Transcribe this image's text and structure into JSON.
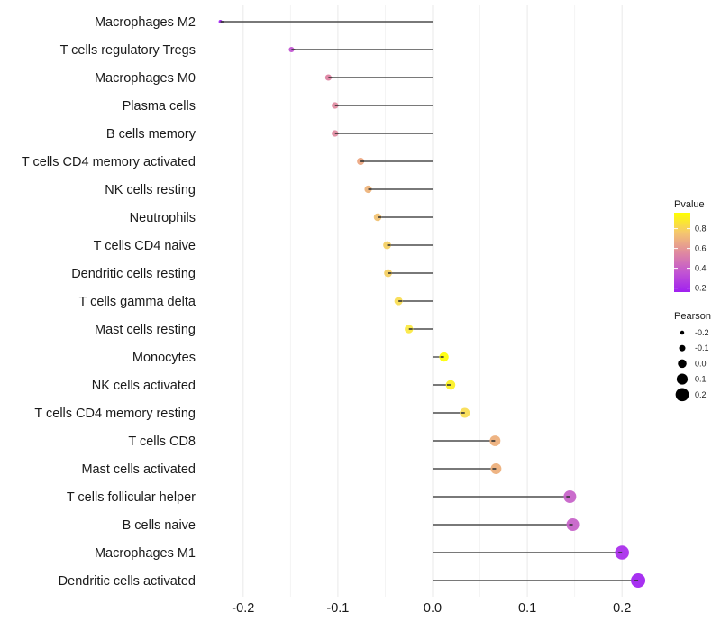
{
  "chart_data": {
    "type": "lollipop",
    "title": "",
    "xlabel": "",
    "ylabel": "",
    "xlim": [
      -0.235,
      0.23
    ],
    "x_ticks": [
      -0.2,
      -0.1,
      0.0,
      0.1,
      0.2
    ],
    "x_tick_labels": [
      "-0.2",
      "-0.1",
      "0.0",
      "0.1",
      "0.2"
    ],
    "x_minor_ticks": [
      -0.15,
      -0.05,
      0.05,
      0.15
    ],
    "grid": true,
    "categories": [
      "Macrophages M2",
      "T cells regulatory  Tregs",
      "Macrophages M0",
      "Plasma cells",
      "B cells memory",
      "T cells CD4 memory activated",
      "NK cells resting",
      "Neutrophils",
      "T cells CD4 naive",
      "Dendritic cells resting",
      "T cells gamma delta",
      "Mast cells resting",
      "Monocytes",
      "NK cells activated",
      "T cells CD4 memory resting",
      "T cells CD8",
      "Mast cells activated",
      "T cells follicular helper",
      "B cells naive",
      "Macrophages M1",
      "Dendritic cells activated"
    ],
    "pearson": [
      -0.224,
      -0.149,
      -0.11,
      -0.103,
      -0.103,
      -0.076,
      -0.068,
      -0.058,
      -0.048,
      -0.047,
      -0.036,
      -0.025,
      0.012,
      0.019,
      0.034,
      0.066,
      0.067,
      0.145,
      0.148,
      0.2,
      0.217
    ],
    "pvalue": [
      0.17,
      0.32,
      0.5,
      0.53,
      0.53,
      0.68,
      0.72,
      0.76,
      0.8,
      0.8,
      0.85,
      0.9,
      0.96,
      0.93,
      0.86,
      0.7,
      0.7,
      0.36,
      0.36,
      0.2,
      0.17
    ],
    "point_colors": [
      "#A020F0",
      "#C050D0",
      "#DD7FA0",
      "#E08A9F",
      "#E08A9F",
      "#EBA57F",
      "#EDB278",
      "#F0C070",
      "#F4CE60",
      "#F4CE60",
      "#F8DC50",
      "#FBE840",
      "#FFFF00",
      "#FCF020",
      "#F8DC50",
      "#EDAE78",
      "#EDAE78",
      "#C660C8",
      "#C660C8",
      "#A82AEC",
      "#A020F0"
    ],
    "stem_color": "#4d4d4d",
    "legend_color": {
      "title": "Pvalue",
      "range": [
        0.16,
        0.96
      ],
      "ticks": [
        0.8,
        0.6,
        0.4,
        0.2
      ],
      "tick_labels": [
        "0.8",
        "0.6",
        "0.4",
        "0.2"
      ],
      "gradient": [
        "#FFFF00",
        "#F5C76E",
        "#E08A9F",
        "#C255D2",
        "#A020F0"
      ],
      "placement": "right"
    },
    "legend_size": {
      "title": "Pearson",
      "values": [
        -0.2,
        -0.1,
        0.0,
        0.1,
        0.2
      ],
      "labels": [
        "-0.2",
        "-0.1",
        "0.0",
        "0.1",
        "0.2"
      ],
      "color": "#000000",
      "placement": "right"
    }
  }
}
